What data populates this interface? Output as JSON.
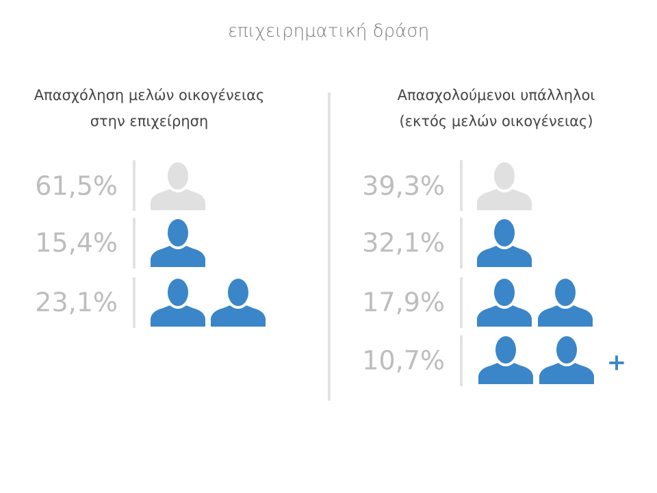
{
  "title": "επιχειρηματική δράση",
  "panels": [
    {
      "heading": [
        "Απασχόληση μελών οικογένειας",
        "στην επιχείρηση"
      ],
      "rows": [
        "61,5%",
        "15,4%",
        "23,1%"
      ]
    },
    {
      "heading": [
        "Απασχολούμενοι υπάλληλοι",
        "(εκτός μελών οικογένειας)"
      ],
      "rows": [
        "39,3%",
        "32,1%",
        "17,9%",
        "10,7%"
      ],
      "more": "+"
    }
  ]
}
